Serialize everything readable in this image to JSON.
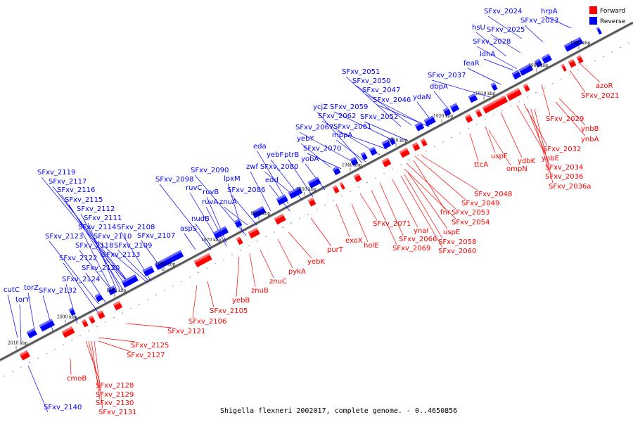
{
  "caption": "Shigella flexneri 2002017, complete genome. - 0..4650856",
  "legend": [
    {
      "label": "Forward",
      "color": "#ff0000"
    },
    {
      "label": "Reverse",
      "color": "#0000ff"
    }
  ],
  "colors": {
    "forward": "#ff0000",
    "reverse": "#0000ff",
    "axis": "#555555"
  },
  "ticks": [
    "2010 kbp",
    "2000 kbp",
    "1990 kbp",
    "1980 kbp",
    "1970 kbp",
    "1960 kbp",
    "1950 kbp",
    "1940 kbp",
    "1930 kbp",
    "1920 kbp",
    "1910 kbp",
    "1900 kbp",
    "1890 kbp"
  ],
  "reverse_labels": [
    "hrpA",
    "SFxv_2024",
    "SFxv_2023",
    "hsU",
    "SFxv_2025",
    "SFxv_2028",
    "ldhA",
    "feaR",
    "SFxv_2037",
    "dbpA",
    "SFxv_2051",
    "SFxv_2050",
    "SFxv_2047",
    "SFxv_2046",
    "ydaN",
    "ycjZ",
    "SFxv_2059",
    "SFxv_2062",
    "SFxv_2061",
    "SFxv_2052",
    "SFxv_2067",
    "yebY",
    "mppA",
    "SFxv_2070",
    "eda",
    "yebF",
    "ptrB",
    "yobA",
    "zwf",
    "SFxv_2080",
    "edd",
    "SFxv_2090",
    "SFxv_2098",
    "lpxM",
    "ruvC",
    "SFxv_2086",
    "ruvB",
    "ruvA",
    "znuA",
    "nudB",
    "aspS",
    "SFxv_2119",
    "SFxv_2117",
    "SFxv_2116",
    "SFxv_2115",
    "SFxv_2112",
    "SFxv_2111",
    "SFxv_2114",
    "SFxv_2108",
    "SFxv_2123",
    "SFxv_2110",
    "SFxv_2107",
    "SFxv_2118",
    "SFxv_2109",
    "SFxv_2113",
    "SFxv_2122",
    "SFxv_2120",
    "SFxv_2124",
    "torZ",
    "cutC",
    "SFxv_2132",
    "torY",
    "SFxv_2140"
  ],
  "forward_labels": [
    "azoR",
    "SFxv_2021",
    "SFxv_2029",
    "ynbB",
    "ynbA",
    "SFxv_2032",
    "ynbE",
    "ydbK",
    "SFxv_2034",
    "SFxv_2036",
    "SFxv_2036a",
    "uspF",
    "ompN",
    "ttcA",
    "SFxv_2048",
    "SFxv_2049",
    "fnr",
    "SFxv_2053",
    "SFxv_2054",
    "SFxv_2071",
    "ynaI",
    "uspE",
    "SFxv_2066",
    "SFxv_2058",
    "SFxv_2069",
    "SFxv_2060",
    "exoX",
    "holE",
    "purT",
    "yebK",
    "pykA",
    "znuC",
    "znuB",
    "yebB",
    "SFxv_2105",
    "SFxv_2106",
    "SFxv_2121",
    "SFxv_2125",
    "SFxv_2127",
    "cmoB",
    "SFxv_2128",
    "SFxv_2129",
    "SFxv_2130",
    "SFxv_2131"
  ]
}
